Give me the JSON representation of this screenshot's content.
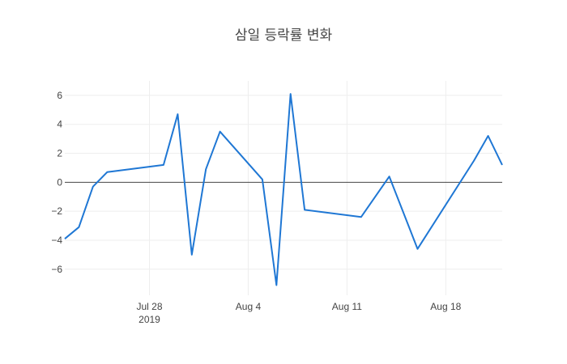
{
  "chart_data": {
    "type": "line",
    "title": "삼일 등락률 변화",
    "xlabel": "",
    "ylabel": "",
    "xlim": [
      "2019-07-22",
      "2019-08-22"
    ],
    "ylim": [
      -7.8,
      7
    ],
    "x_ticks": [
      {
        "date": "2019-07-28",
        "label": "Jul 28",
        "sublabel": "2019"
      },
      {
        "date": "2019-08-04",
        "label": "Aug 4",
        "sublabel": ""
      },
      {
        "date": "2019-08-11",
        "label": "Aug 11",
        "sublabel": ""
      },
      {
        "date": "2019-08-18",
        "label": "Aug 18",
        "sublabel": ""
      }
    ],
    "y_ticks": [
      {
        "value": 6,
        "label": "6"
      },
      {
        "value": 4,
        "label": "4"
      },
      {
        "value": 2,
        "label": "2"
      },
      {
        "value": 0,
        "label": "0"
      },
      {
        "value": -2,
        "label": "−2"
      },
      {
        "value": -4,
        "label": "−4"
      },
      {
        "value": -6,
        "label": "−6"
      }
    ],
    "grid": true,
    "legend": "none",
    "series": [
      {
        "color": "#1f77d4",
        "x": [
          "2019-07-22",
          "2019-07-23",
          "2019-07-24",
          "2019-07-25",
          "2019-07-29",
          "2019-07-30",
          "2019-07-31",
          "2019-08-01",
          "2019-08-02",
          "2019-08-05",
          "2019-08-06",
          "2019-08-07",
          "2019-08-08",
          "2019-08-12",
          "2019-08-14",
          "2019-08-16",
          "2019-08-20",
          "2019-08-21",
          "2019-08-22"
        ],
        "y": [
          -3.9,
          -3.1,
          -0.3,
          0.7,
          1.2,
          4.7,
          -5.0,
          0.9,
          3.5,
          0.2,
          -7.1,
          6.1,
          -1.9,
          -2.4,
          0.4,
          -4.6,
          1.5,
          3.2,
          1.2
        ]
      }
    ]
  }
}
